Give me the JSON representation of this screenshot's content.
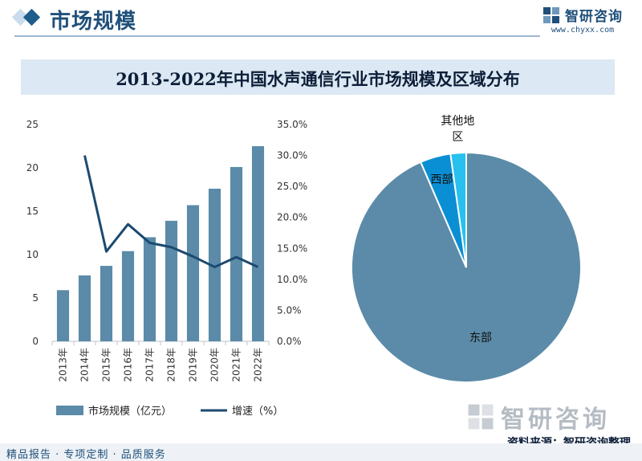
{
  "header": {
    "title": "市场规模",
    "brand_name": "智研咨询",
    "brand_url": "www.chyxx.com"
  },
  "banner": {
    "title": "2013-2022年中国水声通信行业市场规模及区域分布"
  },
  "footer": {
    "logo_name": "智研咨询",
    "source": "资料来源：智研咨询整理",
    "slogan": "精品报告 · 专项定制 · 品质服务"
  },
  "colors": {
    "bar": "#5b8ba8",
    "line": "#1c4a70",
    "pie_east": "#5b8ba8",
    "pie_west": "#0a8fd4",
    "pie_other": "#27c0ef"
  },
  "chart_data": [
    {
      "type": "bar",
      "categories": [
        "2013年",
        "2014年",
        "2015年",
        "2016年",
        "2017年",
        "2018年",
        "2019年",
        "2020年",
        "2021年",
        "2022年"
      ],
      "series": [
        {
          "name": "市场规模（亿元）",
          "type": "bar",
          "axis": "left",
          "values": [
            5.9,
            7.6,
            8.7,
            10.4,
            12.0,
            13.9,
            15.7,
            17.6,
            20.1,
            22.5
          ]
        },
        {
          "name": "增速（%）",
          "type": "line",
          "axis": "right",
          "values": [
            null,
            30.0,
            14.5,
            18.9,
            15.9,
            15.2,
            13.7,
            12.0,
            13.6,
            12.0
          ]
        }
      ],
      "left_ticks": [
        "0",
        "5",
        "10",
        "15",
        "20",
        "25"
      ],
      "right_ticks": [
        "0.0%",
        "5.0%",
        "10.0%",
        "15.0%",
        "20.0%",
        "25.0%",
        "30.0%",
        "35.0%"
      ],
      "ylim_left": [
        0,
        25
      ],
      "ylim_right": [
        0,
        35
      ],
      "legend_position": "bottom"
    },
    {
      "type": "pie",
      "labels": [
        "东部",
        "西部",
        "其他地区"
      ],
      "values": [
        93.5,
        4.3,
        2.2
      ],
      "label_lines": [
        [
          "东部"
        ],
        [
          "西部"
        ],
        [
          "其他地",
          "区"
        ]
      ]
    }
  ]
}
